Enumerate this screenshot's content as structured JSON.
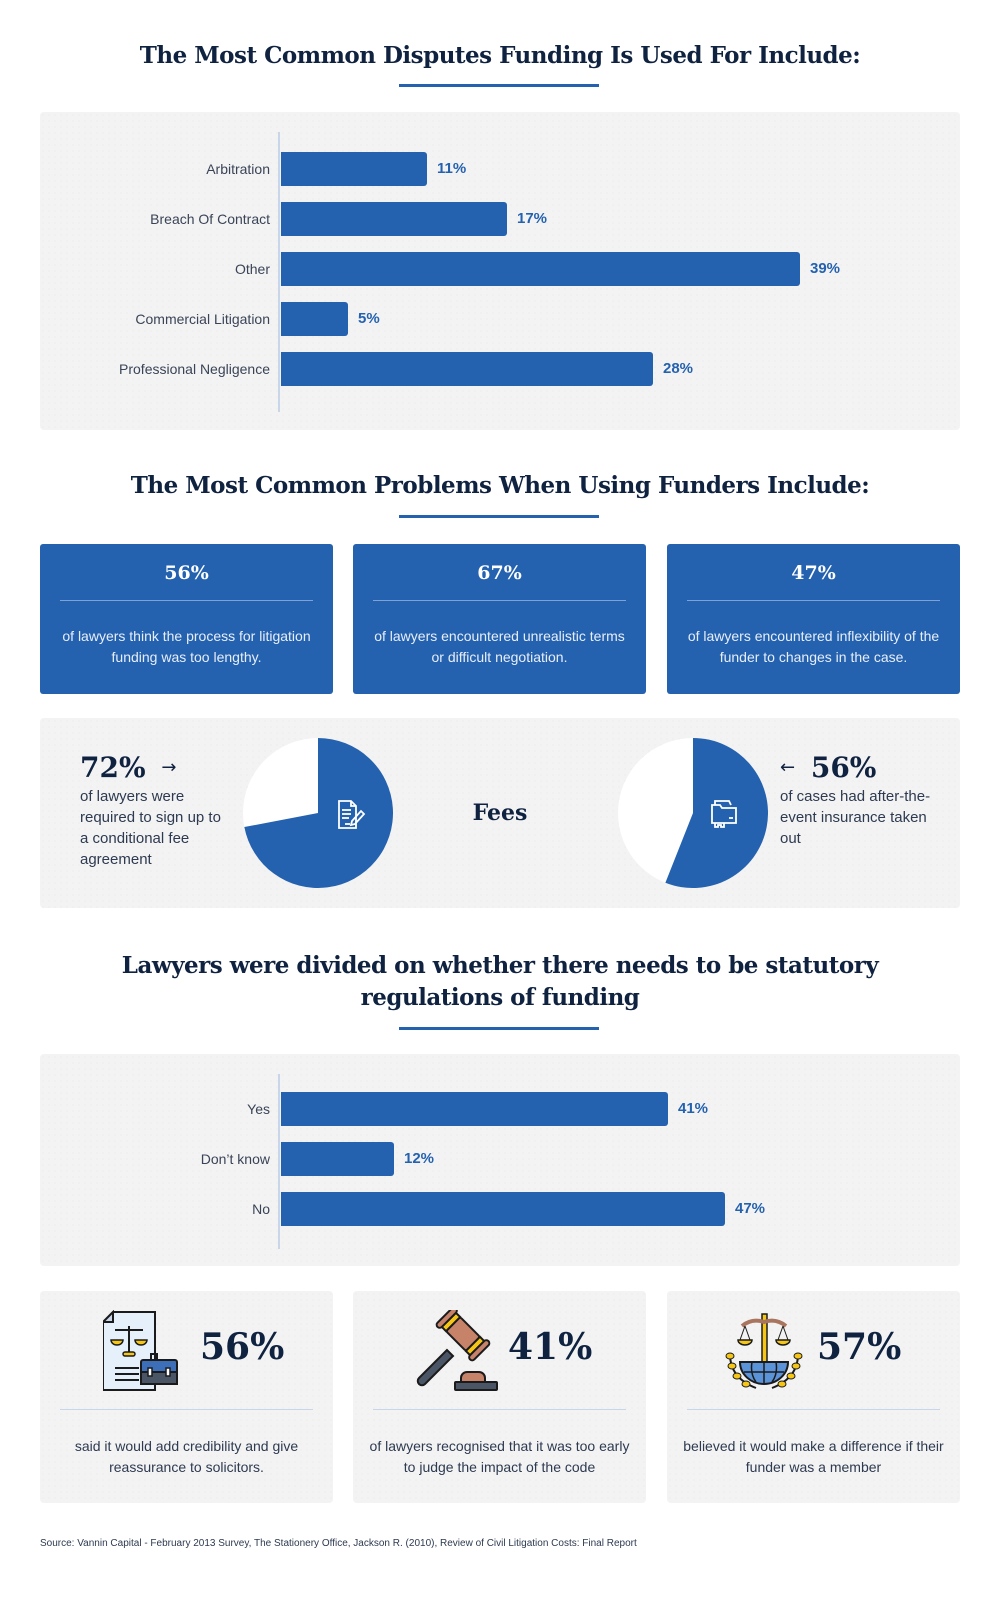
{
  "sections": {
    "disputes": {
      "title": "The Most Common Disputes Funding Is Used For Include:",
      "rows": [
        {
          "label": "Arbitration",
          "value": 11,
          "display": "11%"
        },
        {
          "label": "Breach Of Contract",
          "value": 17,
          "display": "17%"
        },
        {
          "label": "Other",
          "value": 39,
          "display": "39%"
        },
        {
          "label": "Commercial Litigation",
          "value": 5,
          "display": "5%"
        },
        {
          "label": "Professional Negligence",
          "value": 28,
          "display": "28%"
        }
      ]
    },
    "problems": {
      "title": "The Most Common Problems When Using Funders Include:",
      "cards": [
        {
          "pct": "56%",
          "desc": "of lawyers think the process for litigation funding was too lengthy."
        },
        {
          "pct": "67%",
          "desc": "of lawyers encountered unrealistic terms or difficult negotiation."
        },
        {
          "pct": "47%",
          "desc": "of lawyers encountered inflexibility of the funder to changes in the case."
        }
      ],
      "fees": {
        "label": "Fees",
        "left": {
          "pct": "72%",
          "arrow": "→",
          "desc": "of lawyers were required to sign up to a conditional fee agreement",
          "value": 72,
          "icon": "document-pen-icon"
        },
        "right": {
          "pct": "56%",
          "arrow": "←",
          "desc": "of cases had after-the-event insurance taken out",
          "value": 56,
          "icon": "folder-icon"
        }
      }
    },
    "regulation": {
      "title": "Lawyers were divided on whether there needs to be statutory regulations of funding",
      "rows": [
        {
          "label": "Yes",
          "value": 41,
          "display": "41%"
        },
        {
          "label": "Don’t know",
          "value": 12,
          "display": "12%"
        },
        {
          "label": "No",
          "value": 47,
          "display": "47%"
        }
      ],
      "stats": [
        {
          "pct": "56%",
          "desc": "said it would add credibility and give reassurance to solicitors.",
          "icon": "legal-document-briefcase-icon"
        },
        {
          "pct": "41%",
          "desc": "of lawyers recognised that it was too early to judge the impact of the code",
          "icon": "gavel-icon"
        },
        {
          "pct": "57%",
          "desc": "believed it would make a difference if their funder was a member",
          "icon": "scales-globe-icon"
        }
      ]
    }
  },
  "source": "Source: Vannin Capital - February 2013 Survey, The Stationery Office, Jackson R. (2010), Review of Civil Litigation Costs: Final Report",
  "colors": {
    "accent": "#2462b0",
    "heading": "#0f2240",
    "panel": "#f3f3f3"
  },
  "chart_data": [
    {
      "type": "bar",
      "orientation": "horizontal",
      "title": "The Most Common Disputes Funding Is Used For Include:",
      "categories": [
        "Arbitration",
        "Breach Of Contract",
        "Other",
        "Commercial Litigation",
        "Professional Negligence"
      ],
      "values": [
        11,
        17,
        39,
        5,
        28
      ],
      "unit": "%",
      "xlabel": "",
      "ylabel": "",
      "grid": false,
      "legend": null
    },
    {
      "type": "pie",
      "title": "Fees",
      "slices": [
        {
          "label": "of lawyers were required to sign up to a conditional fee agreement",
          "value": 72
        },
        {
          "label": "other",
          "value": 28
        }
      ]
    },
    {
      "type": "pie",
      "title": "Fees",
      "slices": [
        {
          "label": "of cases had after-the-event insurance taken out",
          "value": 56
        },
        {
          "label": "other",
          "value": 44
        }
      ]
    },
    {
      "type": "bar",
      "orientation": "horizontal",
      "title": "Lawyers were divided on whether there needs to be statutory regulations of funding",
      "categories": [
        "Yes",
        "Don’t know",
        "No"
      ],
      "values": [
        41,
        12,
        47
      ],
      "unit": "%",
      "xlabel": "",
      "ylabel": "",
      "grid": false,
      "legend": null
    }
  ]
}
